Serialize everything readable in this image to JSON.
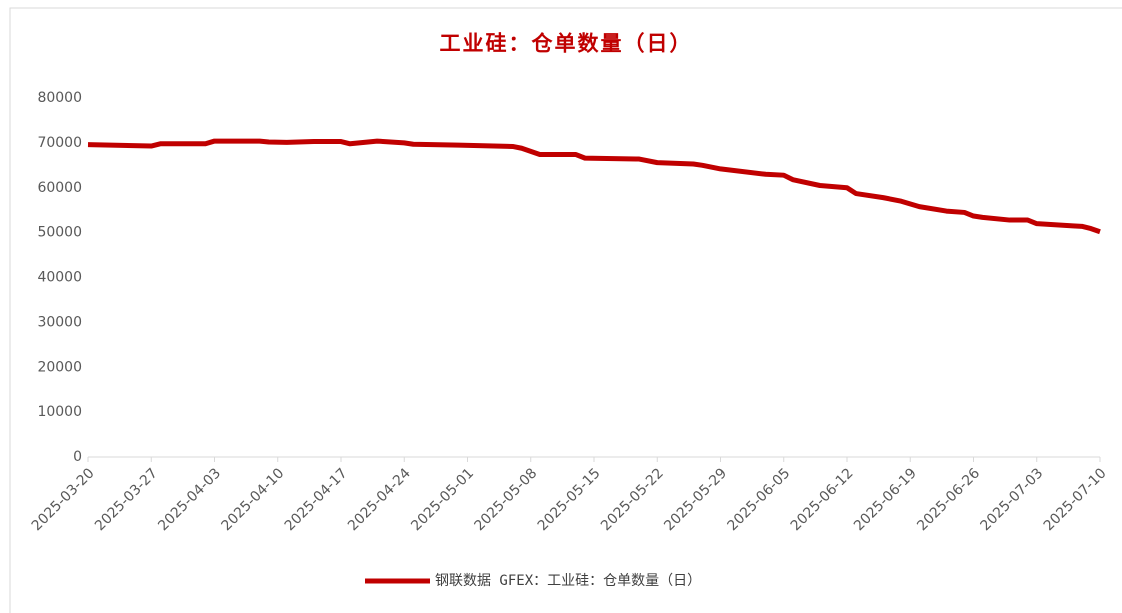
{
  "chart_data": {
    "type": "line",
    "title": "工业硅：仓单数量（日）",
    "x": [
      "2025-03-20",
      "2025-03-27",
      "2025-03-28",
      "2025-04-02",
      "2025-04-03",
      "2025-04-08",
      "2025-04-09",
      "2025-04-11",
      "2025-04-14",
      "2025-04-17",
      "2025-04-18",
      "2025-04-21",
      "2025-04-24",
      "2025-04-25",
      "2025-04-30",
      "2025-05-06",
      "2025-05-07",
      "2025-05-09",
      "2025-05-13",
      "2025-05-14",
      "2025-05-20",
      "2025-05-22",
      "2025-05-26",
      "2025-05-27",
      "2025-05-29",
      "2025-06-03",
      "2025-06-05",
      "2025-06-06",
      "2025-06-09",
      "2025-06-12",
      "2025-06-13",
      "2025-06-16",
      "2025-06-18",
      "2025-06-20",
      "2025-06-23",
      "2025-06-25",
      "2025-06-26",
      "2025-06-27",
      "2025-06-30",
      "2025-07-02",
      "2025-07-03",
      "2025-07-07",
      "2025-07-08",
      "2025-07-09",
      "2025-07-10"
    ],
    "series": [
      {
        "name": "钢联数据 GFEX：工业硅：仓单数量（日）",
        "color": "#c00000",
        "values": [
          69600,
          69300,
          69800,
          69800,
          70400,
          70400,
          70200,
          70100,
          70300,
          70300,
          69800,
          70400,
          70000,
          69700,
          69500,
          69200,
          68800,
          67400,
          67400,
          66600,
          66400,
          65600,
          65300,
          65000,
          64200,
          63000,
          62800,
          61800,
          60500,
          60000,
          58700,
          57800,
          57000,
          55800,
          54800,
          54500,
          53700,
          53400,
          52800,
          52800,
          52000,
          51500,
          51400,
          50900,
          50200
        ]
      }
    ],
    "xlim": [
      "2025-03-20",
      "2025-07-10"
    ],
    "xticks": [
      "2025-03-20",
      "2025-03-27",
      "2025-04-03",
      "2025-04-10",
      "2025-04-17",
      "2025-04-24",
      "2025-05-01",
      "2025-05-08",
      "2025-05-15",
      "2025-05-22",
      "2025-05-29",
      "2025-06-05",
      "2025-06-12",
      "2025-06-19",
      "2025-06-26",
      "2025-07-03",
      "2025-07-10"
    ],
    "ylim": [
      0,
      80000
    ],
    "yticks": [
      0,
      10000,
      20000,
      30000,
      40000,
      50000,
      60000,
      70000,
      80000
    ],
    "grid": false,
    "legend": "bottom"
  }
}
